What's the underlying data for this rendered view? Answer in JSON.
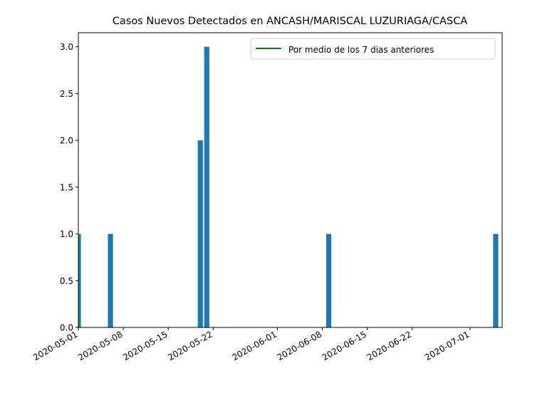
{
  "chart_data": {
    "type": "bar",
    "title": "Casos Nuevos Detectados en ANCASH/MARISCAL LUZURIAGA/CASCA",
    "xlabel": "",
    "ylabel": "",
    "xlim": [
      "2020-05-01",
      "2020-07-06"
    ],
    "ylim": [
      0,
      3.15
    ],
    "x_ticks": [
      "2020-05-01",
      "2020-05-08",
      "2020-05-15",
      "2020-05-22",
      "2020-06-01",
      "2020-06-08",
      "2020-06-15",
      "2020-06-22",
      "2020-07-01"
    ],
    "y_ticks": [
      "0.0",
      "0.5",
      "1.0",
      "1.5",
      "2.0",
      "2.5",
      "3.0"
    ],
    "bars": [
      {
        "date": "2020-05-01",
        "value": 1
      },
      {
        "date": "2020-05-06",
        "value": 1
      },
      {
        "date": "2020-05-20",
        "value": 2
      },
      {
        "date": "2020-05-21",
        "value": 3
      },
      {
        "date": "2020-06-09",
        "value": 1
      },
      {
        "date": "2020-07-05",
        "value": 1
      }
    ],
    "bar_color": "#1f77b4",
    "line_series": {
      "name": "Por medio de los 7 dias anteriores",
      "color": "#008000",
      "values": []
    },
    "legend": {
      "position": "upper right",
      "entries": [
        "Por medio de los 7 dias anteriores"
      ]
    },
    "grid": false
  }
}
